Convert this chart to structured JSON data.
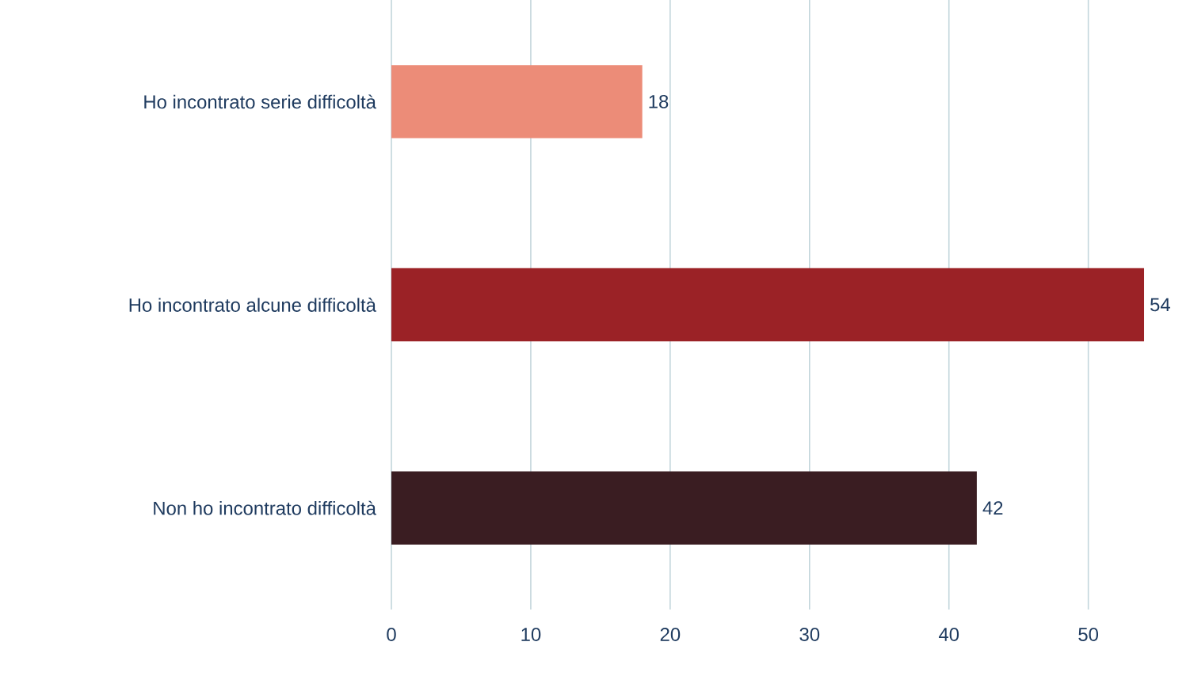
{
  "chart_data": {
    "type": "bar",
    "orientation": "horizontal",
    "categories": [
      "Ho incontrato serie difficoltà",
      "Ho incontrato alcune difficoltà",
      "Non ho incontrato difficoltà"
    ],
    "values": [
      18,
      54,
      42
    ],
    "colors": [
      "#ec8c78",
      "#9b2226",
      "#3a1d22"
    ],
    "xlim": [
      0,
      54
    ],
    "xticks": [
      0,
      10,
      20,
      30,
      40,
      50
    ],
    "grid": "x",
    "data_labels": true
  }
}
